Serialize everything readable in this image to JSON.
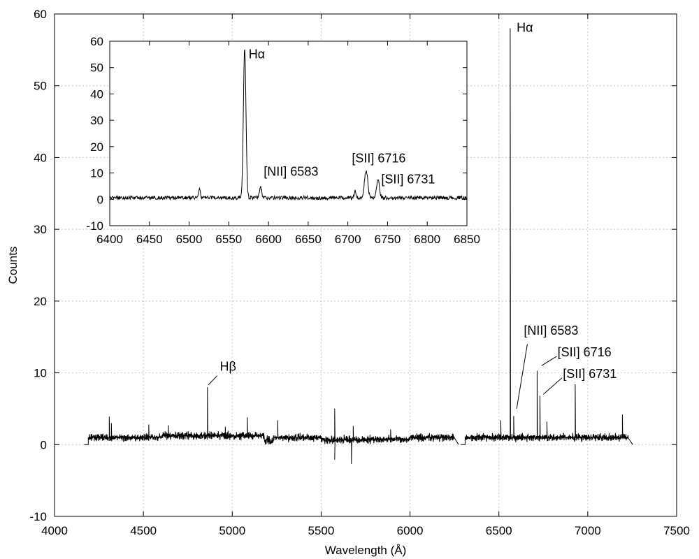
{
  "chart_data": [
    {
      "type": "line",
      "role": "main",
      "xlabel": "Wavelength (Å)",
      "ylabel": "Counts",
      "xlim": [
        4000,
        7500
      ],
      "ylim": [
        -10,
        60
      ],
      "xticks": [
        4000,
        4500,
        5000,
        5500,
        6000,
        6500,
        7000,
        7500
      ],
      "yticks": [
        -10,
        0,
        10,
        20,
        30,
        40,
        50,
        60
      ],
      "grid": true,
      "line_color": "#000000",
      "continuum_ranges": [
        [
          4190,
          6250
        ],
        [
          6310,
          7230
        ]
      ],
      "continuum_level": 1.0,
      "lines": [
        {
          "x": 4308,
          "y": 3.9
        },
        {
          "x": 4320,
          "y": 3.0
        },
        {
          "x": 4530,
          "y": 2.8
        },
        {
          "x": 4640,
          "y": 2.7
        },
        {
          "x": 4861,
          "y": 8.0
        },
        {
          "x": 4960,
          "y": 2.5
        },
        {
          "x": 5085,
          "y": 3.8
        },
        {
          "x": 5255,
          "y": 3.4
        },
        {
          "x": 5577,
          "y": 5.0
        },
        {
          "x": 5577,
          "y": -2.1
        },
        {
          "x": 5670,
          "y": -2.7
        },
        {
          "x": 5680,
          "y": 2.6
        },
        {
          "x": 5890,
          "y": 2.1
        },
        {
          "x": 6300,
          "y": 2.0
        },
        {
          "x": 6510,
          "y": 3.4
        },
        {
          "x": 6563,
          "y": 58.0
        },
        {
          "x": 6583,
          "y": 4.0
        },
        {
          "x": 6716,
          "y": 10.3
        },
        {
          "x": 6731,
          "y": 6.8
        },
        {
          "x": 6770,
          "y": 3.2
        },
        {
          "x": 6930,
          "y": 8.4
        },
        {
          "x": 7195,
          "y": 4.2
        }
      ],
      "annotations": [
        {
          "id": "ha",
          "text": "Hα"
        },
        {
          "id": "hb",
          "text": "Hβ"
        },
        {
          "id": "nii",
          "text": "[NII] 6583"
        },
        {
          "id": "sii1",
          "text": "[SII] 6716"
        },
        {
          "id": "sii2",
          "text": "[SII] 6731"
        }
      ]
    },
    {
      "type": "line",
      "role": "inset",
      "xlim": [
        6400,
        6850
      ],
      "ylim": [
        -10,
        60
      ],
      "xticks": [
        6400,
        6450,
        6500,
        6550,
        6600,
        6650,
        6700,
        6750,
        6800,
        6850
      ],
      "yticks": [
        -10,
        0,
        10,
        20,
        30,
        40,
        50,
        60
      ],
      "grid": false,
      "line_color": "#000000",
      "continuum_level": 0.6,
      "lines": [
        {
          "x": 6513,
          "y": 3.5,
          "sigma": 1.2
        },
        {
          "x": 6570,
          "y": 57.0,
          "sigma": 1.6
        },
        {
          "x": 6590,
          "y": 4.0,
          "sigma": 1.4
        },
        {
          "x": 6709,
          "y": 2.5,
          "sigma": 1.0
        },
        {
          "x": 6723,
          "y": 10.5,
          "sigma": 2.0
        },
        {
          "x": 6738,
          "y": 7.0,
          "sigma": 1.8
        }
      ],
      "annotations": [
        {
          "id": "ha",
          "text": "Hα"
        },
        {
          "id": "nii",
          "text": "[NII] 6583"
        },
        {
          "id": "sii1",
          "text": "[SII] 6716"
        },
        {
          "id": "sii2",
          "text": "[SII] 6731"
        }
      ]
    }
  ]
}
